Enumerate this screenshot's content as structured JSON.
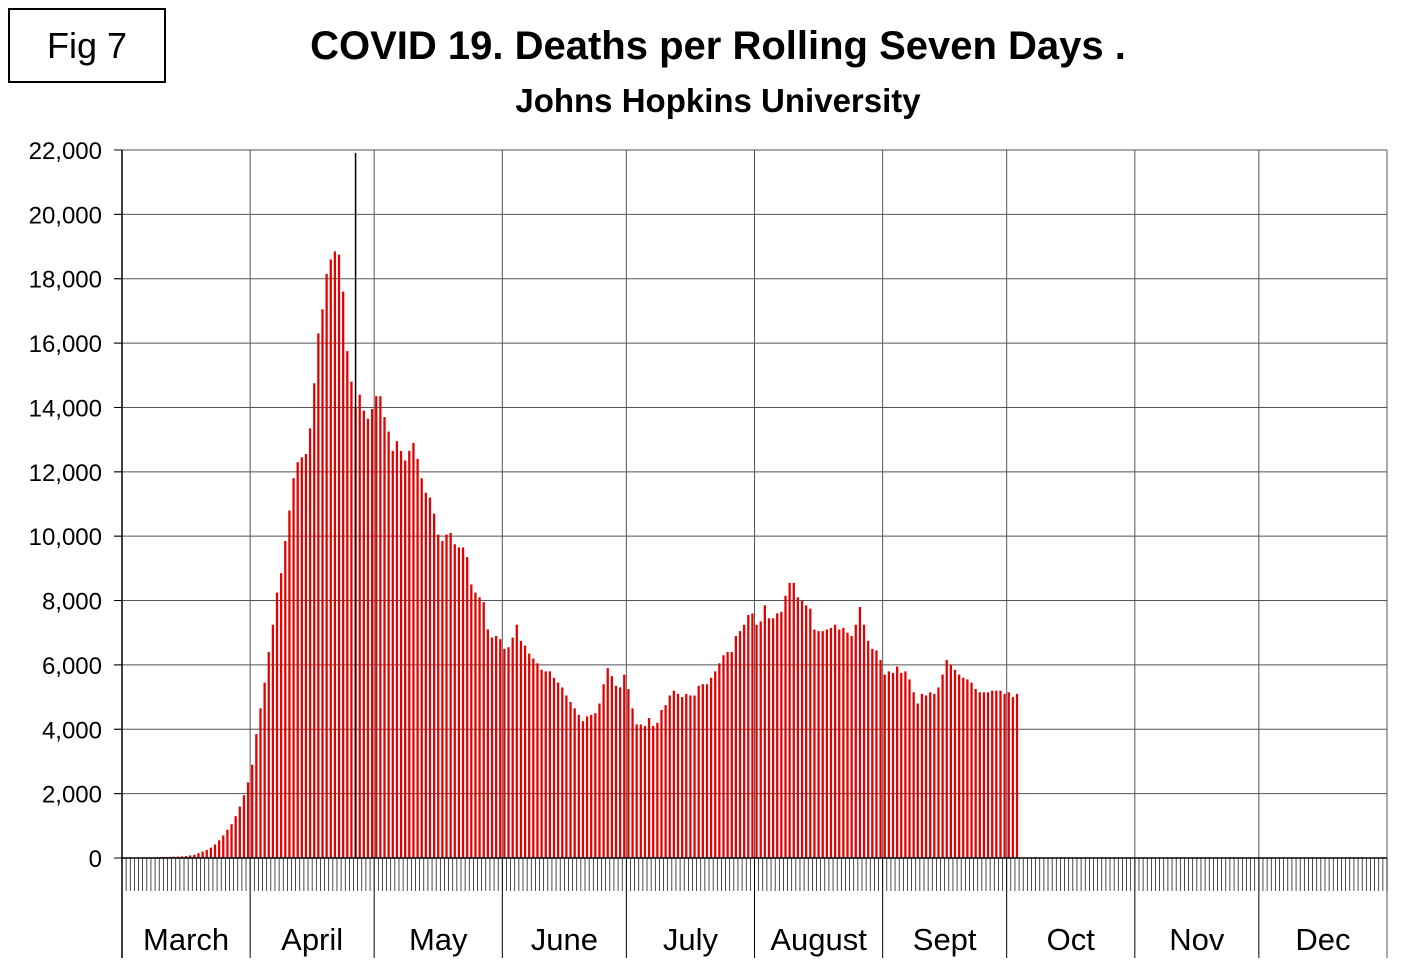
{
  "fig_label": "Fig 7",
  "chart_data": {
    "type": "bar",
    "title": "COVID 19. Deaths per Rolling Seven Days .",
    "subtitle": "Johns Hopkins University",
    "xlabel": "",
    "ylabel": "",
    "ylim": [
      0,
      22000
    ],
    "yticks": [
      "0",
      "2,000",
      "4,000",
      "6,000",
      "8,000",
      "10,000",
      "12,000",
      "14,000",
      "16,000",
      "18,000",
      "20,000",
      "22,000"
    ],
    "months": [
      "March",
      "April",
      "May",
      "June",
      "July",
      "August",
      "Sept",
      "Oct",
      "Nov",
      "Dec"
    ],
    "month_days": [
      31,
      30,
      31,
      30,
      31,
      31,
      30,
      31,
      30,
      31
    ],
    "grid": true,
    "bar_color": "#e30000",
    "series": [
      {
        "name": "Deaths per rolling seven days",
        "start_day_index": 5,
        "values": [
          20,
          20,
          20,
          25,
          30,
          30,
          35,
          40,
          45,
          50,
          60,
          80,
          100,
          150,
          200,
          250,
          320,
          420,
          550,
          700,
          880,
          1050,
          1300,
          1600,
          1950,
          2350,
          2900,
          3850,
          4650,
          5450,
          6400,
          7250,
          8250,
          8850,
          9850,
          10800,
          11800,
          12300,
          12450,
          12550,
          13350,
          14750,
          16300,
          17050,
          18150,
          18600,
          18850,
          18750,
          17600,
          15750,
          14800,
          14000,
          14400,
          13900,
          13650,
          13950,
          14350,
          14350,
          13700,
          13250,
          12650,
          12950,
          12650,
          12350,
          12650,
          12900,
          12400,
          11800,
          11350,
          11200,
          10700,
          10050,
          9850,
          10050,
          10100,
          9750,
          9650,
          9650,
          9350,
          8500,
          8250,
          8100,
          7950,
          7100,
          6850,
          6900,
          6800,
          6500,
          6550,
          6850,
          7250,
          6750,
          6600,
          6350,
          6200,
          6050,
          5850,
          5800,
          5800,
          5600,
          5450,
          5300,
          5050,
          4850,
          4650,
          4450,
          4250,
          4400,
          4450,
          4500,
          4800,
          5400,
          5900,
          5650,
          5350,
          5300,
          5700,
          5250,
          4650,
          4150,
          4150,
          4100,
          4350,
          4100,
          4200,
          4600,
          4750,
          5050,
          5200,
          5100,
          5000,
          5100,
          5050,
          5050,
          5350,
          5400,
          5400,
          5600,
          5800,
          6050,
          6300,
          6400,
          6400,
          6900,
          7050,
          7250,
          7550,
          7600,
          7250,
          7350,
          7850,
          7450,
          7450,
          7600,
          7650,
          8150,
          8550,
          8550,
          8100,
          8000,
          7850,
          7750,
          7100,
          7050,
          7050,
          7100,
          7150,
          7250,
          7100,
          7150,
          7000,
          6900,
          7250,
          7800,
          7250,
          6750,
          6500,
          6450,
          6150,
          5700,
          5800,
          5750,
          5950,
          5750,
          5800,
          5550,
          5150,
          4800,
          5100,
          5050,
          5150,
          5100,
          5300,
          5700,
          6150,
          6000,
          5850,
          5700,
          5600,
          5550,
          5450,
          5250,
          5150,
          5150,
          5150,
          5200,
          5200,
          5200,
          5100,
          5150,
          5000,
          5100
        ]
      }
    ],
    "annotation": "vertical marker line at late April"
  }
}
